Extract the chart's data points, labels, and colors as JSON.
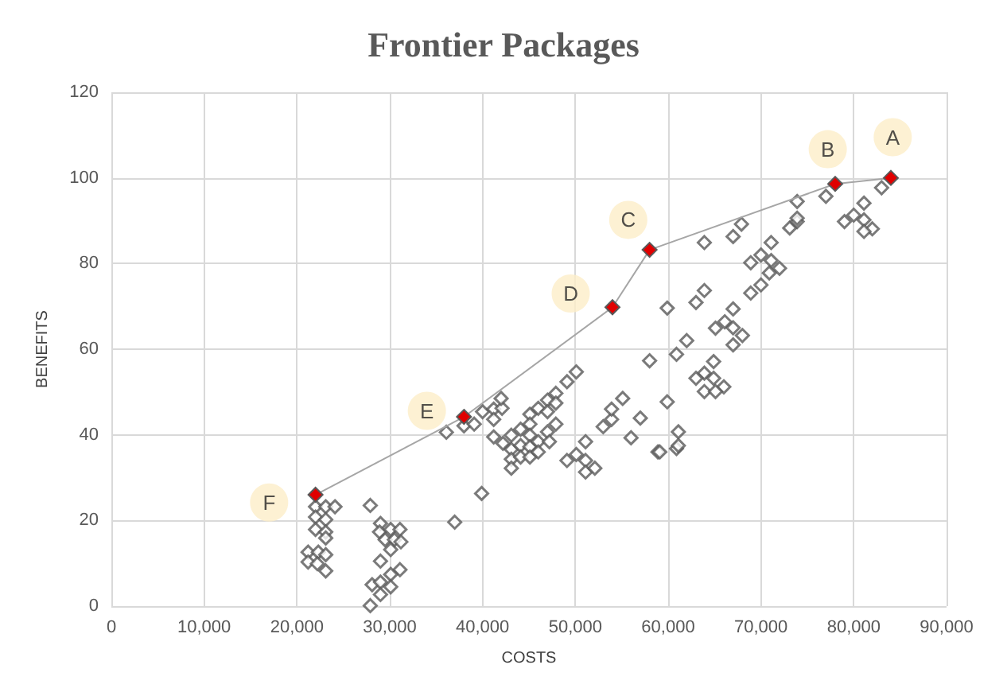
{
  "chart_data": {
    "type": "scatter",
    "title": "Frontier Packages",
    "xlabel": "COSTS",
    "ylabel": "BENEFITS",
    "xlim": [
      0,
      90000
    ],
    "xticks": [
      0,
      {
        "value": 10000,
        "label": "10,000"
      },
      {
        "value": 20000,
        "label": "20,000"
      },
      {
        "value": 30000,
        "label": "30,000"
      },
      {
        "value": 40000,
        "label": "40,000"
      },
      {
        "value": 50000,
        "label": "50,000"
      },
      {
        "value": 60000,
        "label": "60,000"
      },
      {
        "value": 70000,
        "label": "70,000"
      },
      {
        "value": 80000,
        "label": "80,000"
      },
      {
        "value": 90000,
        "label": "90,000"
      }
    ],
    "ylim": [
      0,
      120
    ],
    "yticks": [
      0,
      20,
      40,
      60,
      80,
      100,
      120
    ],
    "grid": true,
    "marker": "diamond",
    "series": [
      {
        "color": "#595959",
        "x": [
          22000,
          23100,
          24100,
          22000,
          23100,
          22000,
          23100,
          23100,
          21200,
          22300,
          23100,
          21200,
          22200,
          23100,
          27900,
          29000,
          28900,
          30100,
          31100,
          29500,
          30500,
          31200,
          30100,
          29000,
          31100,
          30100,
          28100,
          29000,
          30100,
          29000,
          27900,
          37000,
          36100,
          38000,
          39100,
          40000,
          41200,
          42100,
          42000,
          41200,
          41200,
          42200,
          43100,
          43100,
          43100,
          43100,
          44100,
          44100,
          44100,
          45100,
          45100,
          45100,
          45100,
          45100,
          46000,
          46000,
          46000,
          47000,
          47000,
          47000,
          47200,
          47900,
          47900,
          47900,
          49100,
          50100,
          49100,
          50100,
          51100,
          51100,
          51100,
          52100,
          53000,
          53900,
          53900,
          55100,
          56000,
          57000,
          58000,
          58900,
          59900,
          60900,
          60900,
          39900,
          63900,
          67000,
          67900,
          71100,
          68900,
          70000,
          71100,
          72000,
          70900,
          70000,
          68900,
          59900,
          63000,
          63900,
          67000,
          65100,
          66100,
          67000,
          68000,
          67000,
          62000,
          64900,
          63900,
          63000,
          64900,
          66000,
          63900,
          65100,
          61100,
          61100,
          59100,
          73100,
          73900,
          73900,
          77000,
          73900,
          81100,
          80000,
          79000,
          81100,
          82000,
          81100,
          83000
        ],
        "values": [
          23.2,
          23.2,
          23.2,
          20.8,
          20.2,
          17.9,
          17.3,
          15.9,
          12.6,
          12.6,
          12.0,
          10.3,
          9.9,
          8.2,
          23.5,
          19.3,
          17.3,
          17.9,
          17.9,
          15.5,
          15.5,
          15.0,
          13.2,
          10.5,
          8.5,
          7.4,
          5.0,
          5.6,
          4.5,
          2.7,
          0.1,
          19.6,
          40.6,
          42.1,
          42.5,
          45.4,
          46.0,
          46.2,
          48.5,
          43.6,
          39.5,
          38.0,
          39.9,
          36.6,
          34.3,
          32.2,
          41.3,
          37.5,
          34.8,
          44.8,
          42.5,
          39.9,
          37.2,
          34.8,
          46.2,
          38.4,
          36.0,
          48.1,
          45.4,
          40.7,
          38.4,
          49.7,
          47.4,
          42.5,
          52.4,
          54.7,
          34.0,
          35.4,
          38.4,
          34.0,
          31.3,
          32.2,
          41.9,
          43.6,
          46.0,
          48.5,
          39.3,
          43.9,
          57.3,
          36.0,
          47.7,
          58.8,
          36.8,
          26.3,
          84.9,
          86.3,
          89.2,
          84.9,
          80.2,
          82.0,
          80.7,
          78.9,
          77.8,
          75.0,
          73.1,
          69.6,
          70.9,
          73.7,
          69.4,
          64.9,
          66.4,
          65.0,
          63.2,
          61.0,
          62.0,
          57.1,
          54.4,
          53.2,
          53.2,
          51.2,
          50.1,
          50.1,
          40.7,
          37.5,
          36.0,
          88.3,
          89.8,
          94.5,
          95.7,
          90.6,
          94.1,
          91.3,
          89.8,
          90.2,
          88.1,
          87.5,
          97.7
        ]
      },
      {
        "type": "line",
        "color": "#e00000",
        "x": [
          22000,
          38000,
          54000,
          58000,
          78000,
          84000
        ],
        "values": [
          26.0,
          44.2,
          69.8,
          83.2,
          98.6,
          100
        ]
      }
    ],
    "annotations": [
      {
        "text": "A",
        "x": 84200,
        "y": 109.5
      },
      {
        "text": "B",
        "x": 77200,
        "y": 106.7
      },
      {
        "text": "C",
        "x": 55700,
        "y": 90.2
      },
      {
        "text": "D",
        "x": 49500,
        "y": 73
      },
      {
        "text": "E",
        "x": 34000,
        "y": 45.6
      },
      {
        "text": "F",
        "x": 17000,
        "y": 24.2
      }
    ]
  }
}
